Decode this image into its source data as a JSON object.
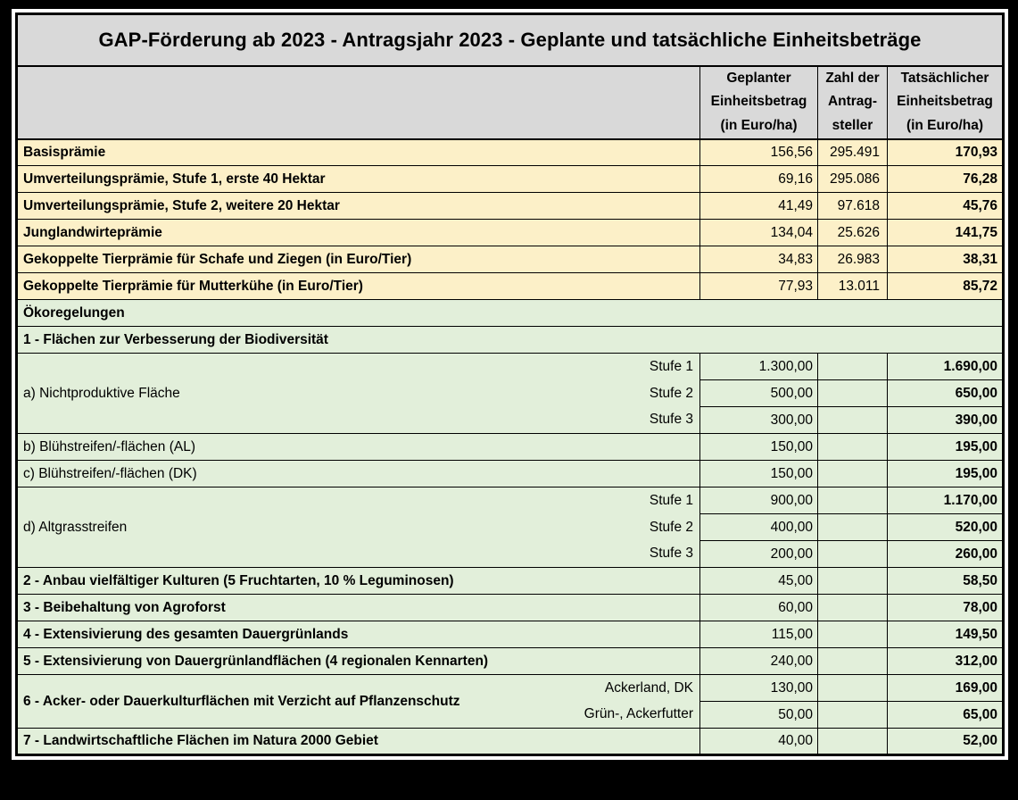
{
  "colors": {
    "frame": "#000000",
    "paper": "#ffffff",
    "header_bg": "#d9d9d9",
    "yellow_bg": "#fcf0c8",
    "green_bg": "#e2efda",
    "border": "#000000",
    "text": "#000000"
  },
  "chart_data": {
    "type": "table",
    "title": "GAP-Förderung ab 2023 - Antragsjahr 2023 - Geplante und tatsächliche Einheitsbeträge",
    "columns": [
      "",
      "Geplanter\nEinheitsbetrag\n(in Euro/ha)",
      "Zahl der\nAntrag-\nsteller",
      "Tatsächlicher\nEinheitsbetrag\n(in Euro/ha)"
    ],
    "rows": [
      {
        "kind": "data",
        "section": "yellow",
        "bold": true,
        "label": "Basisprämie",
        "planned": "156,56",
        "count": "295.491",
        "actual": "170,93"
      },
      {
        "kind": "data",
        "section": "yellow",
        "bold": true,
        "label": "Umverteilungsprämie, Stufe 1, erste 40 Hektar",
        "planned": "69,16",
        "count": "295.086",
        "actual": "76,28"
      },
      {
        "kind": "data",
        "section": "yellow",
        "bold": true,
        "label": "Umverteilungsprämie, Stufe 2, weitere 20 Hektar",
        "planned": "41,49",
        "count": "97.618",
        "actual": "45,76"
      },
      {
        "kind": "data",
        "section": "yellow",
        "bold": true,
        "label": "Junglandwirteprämie",
        "planned": "134,04",
        "count": "25.626",
        "actual": "141,75"
      },
      {
        "kind": "data",
        "section": "yellow",
        "bold": true,
        "label": "Gekoppelte Tierprämie für Schafe und Ziegen (in Euro/Tier)",
        "planned": "34,83",
        "count": "26.983",
        "actual": "38,31"
      },
      {
        "kind": "data",
        "section": "yellow",
        "bold": true,
        "label": "Gekoppelte Tierprämie für Mutterkühe (in Euro/Tier)",
        "planned": "77,93",
        "count": "13.011",
        "actual": "85,72"
      },
      {
        "kind": "full",
        "section": "green",
        "bold": true,
        "label": "Ökoregelungen"
      },
      {
        "kind": "full",
        "section": "green",
        "bold": true,
        "label": "1 - Flächen zur Verbesserung der Biodiversität"
      },
      {
        "kind": "group",
        "section": "green",
        "bold": false,
        "label": "a) Nichtproduktive Fläche",
        "subrows": [
          {
            "sub": "Stufe 1",
            "planned": "1.300,00",
            "count": "",
            "actual": "1.690,00"
          },
          {
            "sub": "Stufe 2",
            "planned": "500,00",
            "count": "",
            "actual": "650,00"
          },
          {
            "sub": "Stufe 3",
            "planned": "300,00",
            "count": "",
            "actual": "390,00"
          }
        ]
      },
      {
        "kind": "data",
        "section": "green",
        "bold": false,
        "label": "b) Blühstreifen/-flächen (AL)",
        "planned": "150,00",
        "count": "",
        "actual": "195,00"
      },
      {
        "kind": "data",
        "section": "green",
        "bold": false,
        "label": "c) Blühstreifen/-flächen (DK)",
        "planned": "150,00",
        "count": "",
        "actual": "195,00"
      },
      {
        "kind": "group",
        "section": "green",
        "bold": false,
        "label": "d) Altgrasstreifen",
        "subrows": [
          {
            "sub": "Stufe 1",
            "planned": "900,00",
            "count": "",
            "actual": "1.170,00"
          },
          {
            "sub": "Stufe 2",
            "planned": "400,00",
            "count": "",
            "actual": "520,00"
          },
          {
            "sub": "Stufe 3",
            "planned": "200,00",
            "count": "",
            "actual": "260,00"
          }
        ]
      },
      {
        "kind": "data",
        "section": "green",
        "bold": true,
        "label": "2 - Anbau vielfältiger Kulturen (5 Fruchtarten, 10 % Leguminosen)",
        "planned": "45,00",
        "count": "",
        "actual": "58,50"
      },
      {
        "kind": "data",
        "section": "green",
        "bold": true,
        "label": "3 - Beibehaltung von Agroforst",
        "planned": "60,00",
        "count": "",
        "actual": "78,00"
      },
      {
        "kind": "data",
        "section": "green",
        "bold": true,
        "label": "4 - Extensivierung des gesamten Dauergrünlands",
        "planned": "115,00",
        "count": "",
        "actual": "149,50"
      },
      {
        "kind": "data",
        "section": "green",
        "bold": true,
        "label": "5 - Extensivierung von Dauergrünlandflächen (4 regionalen Kennarten)",
        "planned": "240,00",
        "count": "",
        "actual": "312,00"
      },
      {
        "kind": "group",
        "section": "green",
        "bold": true,
        "label": "6 - Acker- oder Dauerkulturflächen mit Verzicht auf Pflanzenschutz",
        "subrows": [
          {
            "sub": "Ackerland, DK",
            "planned": "130,00",
            "count": "",
            "actual": "169,00"
          },
          {
            "sub": "Grün-, Ackerfutter",
            "planned": "50,00",
            "count": "",
            "actual": "65,00"
          }
        ]
      },
      {
        "kind": "data",
        "section": "green",
        "bold": true,
        "label": "7 - Landwirtschaftliche Flächen im Natura 2000 Gebiet",
        "planned": "40,00",
        "count": "",
        "actual": "52,00"
      }
    ]
  }
}
